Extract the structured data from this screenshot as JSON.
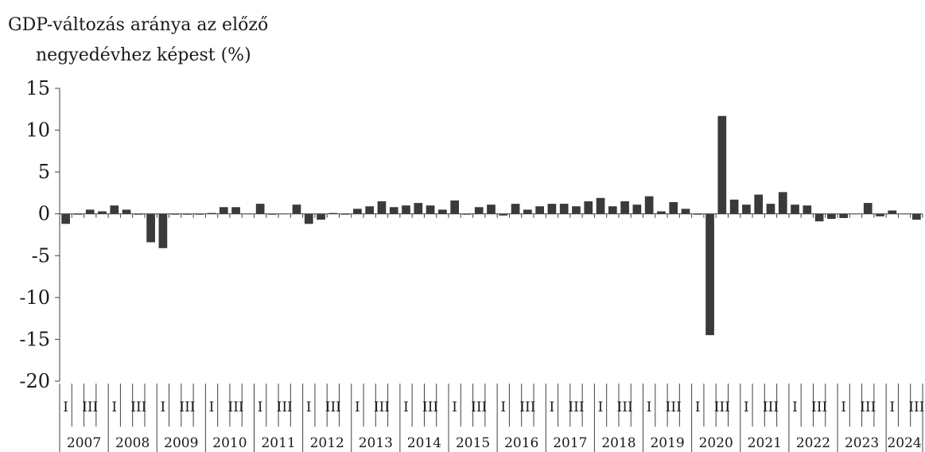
{
  "chart_data": {
    "type": "bar",
    "ylabel_lines": [
      "GDP-változás aránya az előző",
      "negyedévhez képest (%)"
    ],
    "ylim": [
      -20,
      15
    ],
    "yticks": [
      15,
      10,
      5,
      0,
      -5,
      -10,
      -15,
      -20
    ],
    "ytick_labels": [
      "15",
      "10",
      "5",
      "0",
      "-5",
      "-10",
      "-15",
      "-20"
    ],
    "grid": false,
    "bar_color": "#3a3a3a",
    "quarter_labels": [
      "I",
      "II",
      "III",
      "IV"
    ],
    "years": [
      "2007",
      "2008",
      "2009",
      "2010",
      "2011",
      "2012",
      "2013",
      "2014",
      "2015",
      "2016",
      "2017",
      "2018",
      "2019",
      "2020",
      "2021",
      "2022",
      "2023",
      "2024"
    ],
    "quarters_per_year": [
      4,
      4,
      4,
      4,
      4,
      4,
      4,
      4,
      4,
      4,
      4,
      4,
      4,
      4,
      4,
      4,
      4,
      3
    ],
    "values": [
      -1.2,
      -0.1,
      0.5,
      0.3,
      1.0,
      0.5,
      -0.1,
      -3.4,
      -4.1,
      -0.1,
      -0.1,
      -0.1,
      0.1,
      0.8,
      0.8,
      0.0,
      1.2,
      -0.1,
      0.0,
      1.1,
      -1.2,
      -0.7,
      0.1,
      -0.1,
      0.6,
      0.9,
      1.5,
      0.8,
      1.0,
      1.3,
      1.0,
      0.5,
      1.6,
      -0.1,
      0.8,
      1.1,
      -0.2,
      1.2,
      0.5,
      0.9,
      1.2,
      1.2,
      0.9,
      1.5,
      1.9,
      0.9,
      1.5,
      1.1,
      2.1,
      0.3,
      1.4,
      0.6,
      -0.1,
      -14.5,
      11.7,
      1.7,
      1.1,
      2.3,
      1.2,
      2.6,
      1.1,
      1.0,
      -0.9,
      -0.6,
      -0.5,
      0.0,
      1.3,
      -0.3,
      0.4,
      0.0,
      -0.7
    ]
  }
}
